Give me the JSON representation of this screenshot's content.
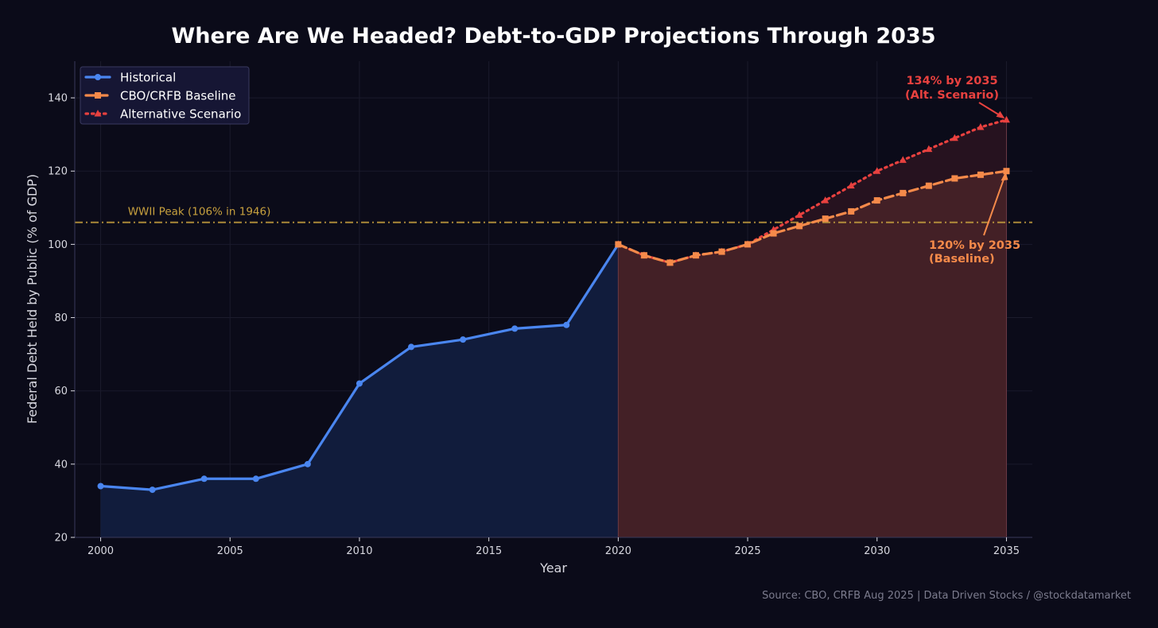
{
  "chart_data": {
    "type": "line",
    "title": "Where Are We Headed? Debt-to-GDP Projections Through 2035",
    "xlabel": "Year",
    "ylabel": "Federal Debt Held by Public (% of GDP)",
    "xlim": [
      1999,
      2036
    ],
    "ylim": [
      20,
      150
    ],
    "xticks": [
      2000,
      2005,
      2010,
      2015,
      2020,
      2025,
      2030,
      2035
    ],
    "yticks": [
      20,
      40,
      60,
      80,
      100,
      120,
      140
    ],
    "grid": true,
    "legend_position": "top-left",
    "series": [
      {
        "name": "Historical",
        "style": "solid",
        "marker": "circle",
        "color": "#4a86f0",
        "x": [
          2000,
          2002,
          2004,
          2006,
          2008,
          2010,
          2012,
          2014,
          2016,
          2018,
          2020
        ],
        "values": [
          34,
          33,
          36,
          36,
          40,
          62,
          72,
          74,
          77,
          78,
          100
        ]
      },
      {
        "name": "CBO/CRFB Baseline",
        "style": "dashed",
        "marker": "square",
        "color": "#f58a4a",
        "x": [
          2020,
          2021,
          2022,
          2023,
          2024,
          2025,
          2026,
          2027,
          2028,
          2029,
          2030,
          2031,
          2032,
          2033,
          2034,
          2035
        ],
        "values": [
          100,
          97,
          95,
          97,
          98,
          100,
          103,
          105,
          107,
          109,
          112,
          114,
          116,
          118,
          119,
          120
        ]
      },
      {
        "name": "Alternative Scenario",
        "style": "dotted",
        "marker": "triangle",
        "color": "#e8413f",
        "x": [
          2020,
          2021,
          2022,
          2023,
          2024,
          2025,
          2026,
          2027,
          2028,
          2029,
          2030,
          2031,
          2032,
          2033,
          2034,
          2035
        ],
        "values": [
          100,
          97,
          95,
          97,
          98,
          100,
          104,
          108,
          112,
          116,
          120,
          123,
          126,
          129,
          132,
          134
        ]
      }
    ],
    "reference_line": {
      "y": 106,
      "label": "WWII Peak (106% in 1946)",
      "color": "#c7a03e"
    },
    "annotations": [
      {
        "text_lines": [
          "134% by 2035",
          "(Alt. Scenario)"
        ],
        "x": 2035,
        "y": 134,
        "color": "#e8413f"
      },
      {
        "text_lines": [
          "120% by 2035",
          "(Baseline)"
        ],
        "x": 2035,
        "y": 120,
        "color": "#f58a4a"
      }
    ],
    "source": "Source: CBO, CRFB Aug 2025  |  Data Driven Stocks / @stockdatamarket"
  }
}
